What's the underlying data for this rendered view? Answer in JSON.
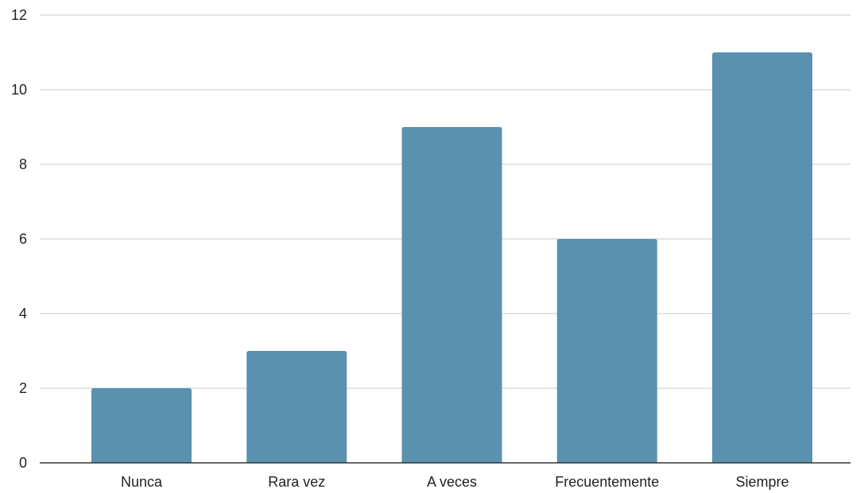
{
  "chart_data": {
    "type": "bar",
    "title": "",
    "xlabel": "",
    "ylabel": "",
    "categories": [
      "Nunca",
      "Rara vez",
      "A veces",
      "Frecuentemente",
      "Siempre"
    ],
    "values": [
      2,
      3,
      9,
      6,
      11
    ],
    "ylim": [
      0,
      12
    ],
    "yticks": [
      "0",
      "2",
      "4",
      "6",
      "8",
      "10",
      "12"
    ],
    "grid": true,
    "legend": "none",
    "colors": {
      "bar": "#5991ae",
      "grid": "#c8c8c8",
      "axis": "#333333",
      "text": "#222222"
    }
  }
}
